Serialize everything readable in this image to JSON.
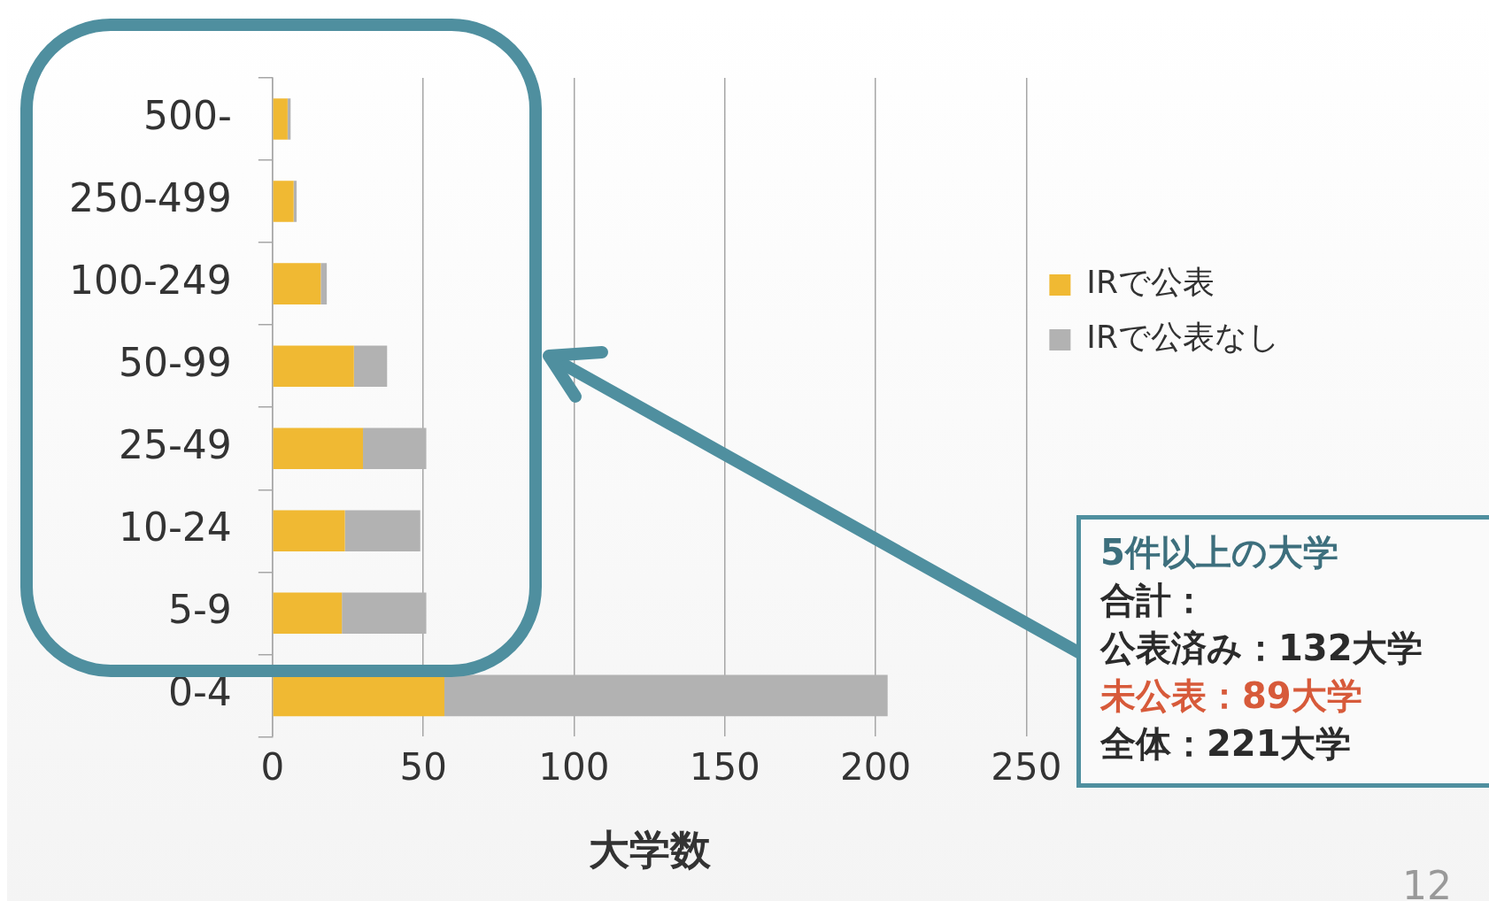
{
  "chart_data": {
    "type": "bar",
    "orientation": "horizontal",
    "stacked": true,
    "categories": [
      "500-",
      "250-499",
      "100-249",
      "50-99",
      "25-49",
      "10-24",
      "5-9",
      "0-4"
    ],
    "series": [
      {
        "name": "IRで公表",
        "color": "#f0b933",
        "values": [
          5,
          7,
          16,
          27,
          30,
          24,
          23,
          57
        ]
      },
      {
        "name": "IRで公表なし",
        "color": "#b2b2b2",
        "values": [
          1,
          1,
          2,
          11,
          21,
          25,
          28,
          147
        ]
      }
    ],
    "xlabel": "大学数",
    "xlim": [
      0,
      250
    ],
    "xticks": [
      0,
      50,
      100,
      150,
      200,
      250
    ],
    "grid": "x",
    "legend": "right",
    "annotations": [
      "5件以上の大学",
      "合計：",
      "公表済み：132大学",
      "未公表：89大学",
      "全体：221大学",
      "12"
    ]
  }
}
